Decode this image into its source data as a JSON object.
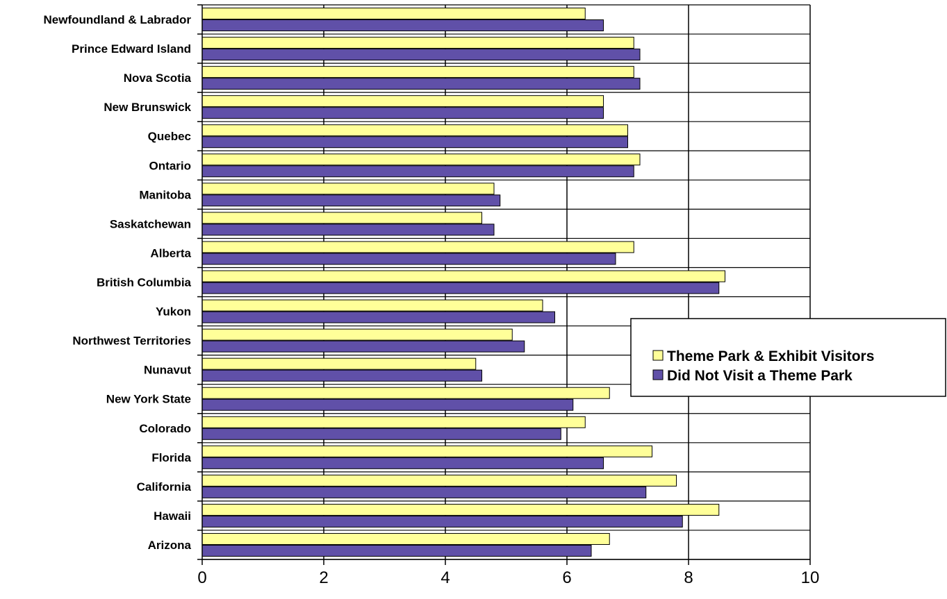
{
  "chart_data": {
    "type": "bar",
    "orientation": "horizontal",
    "title": "",
    "xlabel": "",
    "ylabel": "",
    "xlim": [
      0,
      10
    ],
    "x_ticks": [
      "0",
      "2",
      "4",
      "6",
      "8",
      "10"
    ],
    "grid": true,
    "legend_position": "right",
    "categories": [
      "Newfoundland & Labrador",
      "Prince Edward Island",
      "Nova Scotia",
      "New Brunswick",
      "Quebec",
      "Ontario",
      "Manitoba",
      "Saskatchewan",
      "Alberta",
      "British Columbia",
      "Yukon",
      "Northwest Territories",
      "Nunavut",
      "New York State",
      "Colorado",
      "Florida",
      "California",
      "Hawaii",
      "Arizona"
    ],
    "series": [
      {
        "name": "Theme Park & Exhibit Visitors",
        "color": "#ffff99",
        "values": [
          6.3,
          7.1,
          7.1,
          6.6,
          7.0,
          7.2,
          4.8,
          4.6,
          7.1,
          8.6,
          5.6,
          5.1,
          4.5,
          6.7,
          6.3,
          7.4,
          7.8,
          8.5,
          6.7
        ]
      },
      {
        "name": "Did Not Visit a Theme Park",
        "color": "#6050a8",
        "values": [
          6.6,
          7.2,
          7.2,
          6.6,
          7.0,
          7.1,
          4.9,
          4.8,
          6.8,
          8.5,
          5.8,
          5.3,
          4.6,
          6.1,
          5.9,
          6.6,
          7.3,
          7.9,
          6.4
        ]
      }
    ]
  }
}
